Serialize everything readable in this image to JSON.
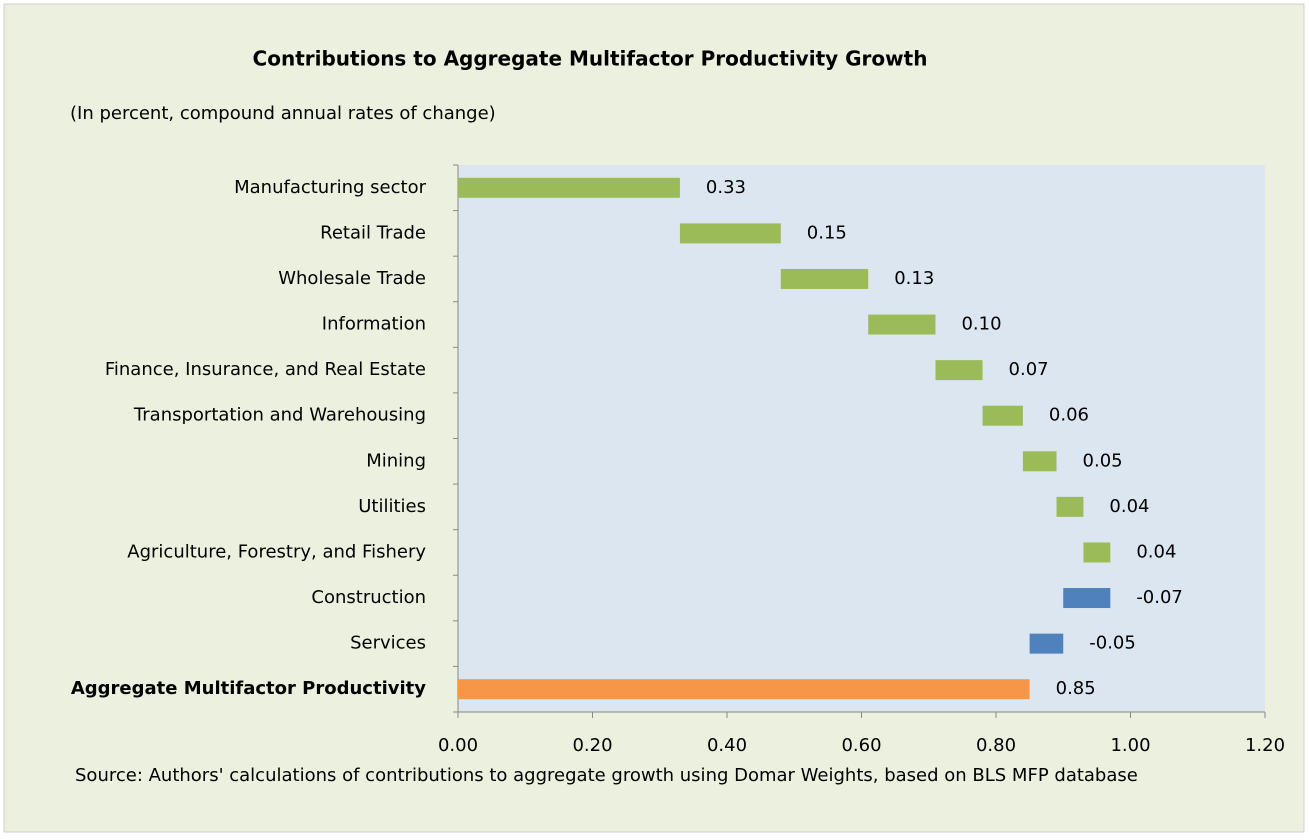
{
  "chart_data": {
    "type": "waterfall",
    "title": "Contributions to Aggregate Multifactor Productivity Growth",
    "subtitle": "(In percent, compound annual rates of change)",
    "source": "Source: Authors' calculations of contributions to aggregate growth using Domar Weights, based on BLS MFP database",
    "categories": [
      "Manufacturing sector",
      "Retail Trade",
      "Wholesale Trade",
      "Information",
      "Finance, Insurance, and Real Estate",
      "Transportation and Warehousing",
      "Mining",
      "Utilities",
      "Agriculture, Forestry, and Fishery",
      "Construction",
      "Services"
    ],
    "values": [
      0.33,
      0.15,
      0.13,
      0.1,
      0.07,
      0.06,
      0.05,
      0.04,
      0.04,
      -0.07,
      -0.05
    ],
    "value_labels": [
      "0.33",
      "0.15",
      "0.13",
      "0.10",
      "0.07",
      "0.06",
      "0.05",
      "0.04",
      "0.04",
      "-0.07",
      "-0.05"
    ],
    "total": {
      "name": "Aggregate Multifactor Productivity",
      "value": 0.85,
      "value_label": "0.85",
      "color": "#f79646"
    },
    "increase_color": "#9bbb59",
    "decrease_color": "#4f81bd",
    "xlim": [
      0,
      1.2
    ],
    "xticks": [
      {
        "value": 0,
        "label": "0.00"
      },
      {
        "value": 0.2,
        "label": "0.20"
      },
      {
        "value": 0.4,
        "label": "0.40"
      },
      {
        "value": 0.6,
        "label": "0.60"
      },
      {
        "value": 0.8,
        "label": "0.80"
      },
      {
        "value": 1.0,
        "label": "1.00"
      },
      {
        "value": 1.2,
        "label": "1.20"
      }
    ]
  }
}
